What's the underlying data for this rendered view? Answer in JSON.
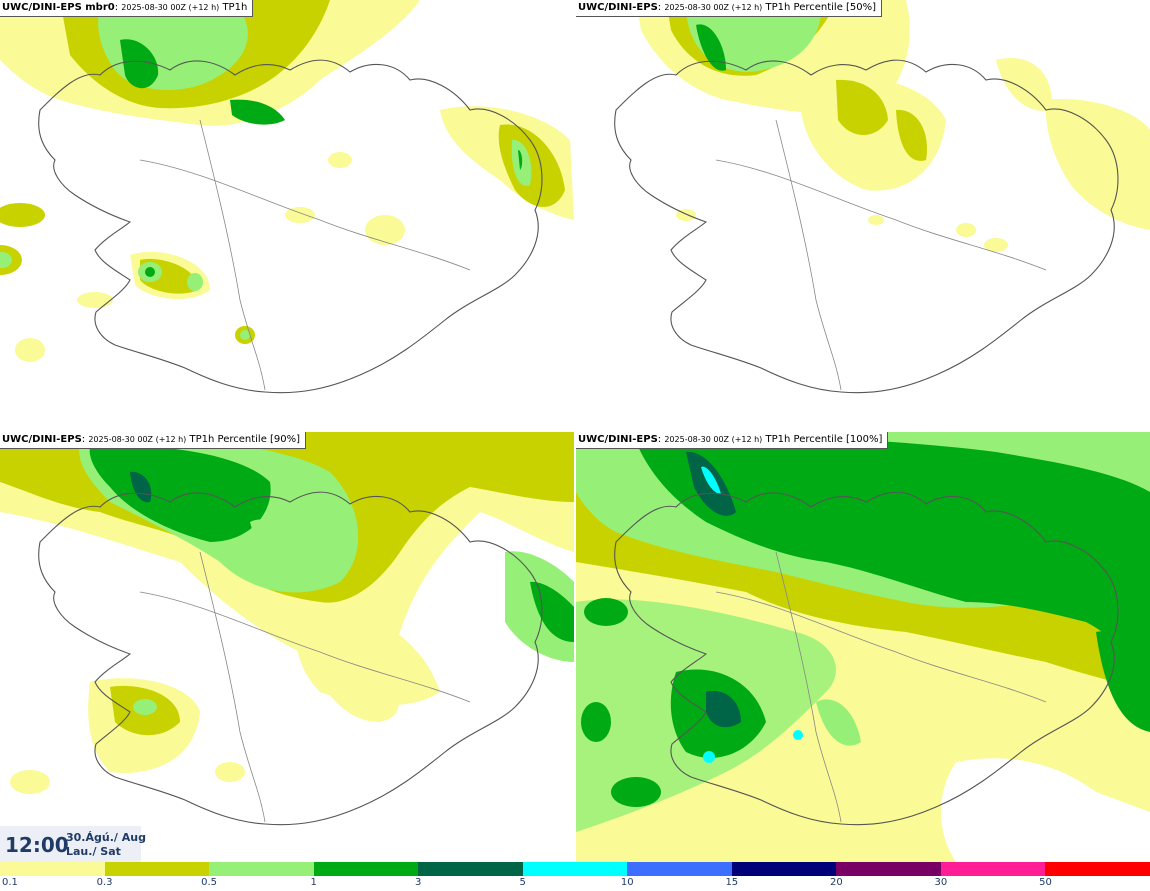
{
  "panels": [
    {
      "model": "UWC/DINI-EPS mbr0",
      "run": "2025-08-30 00Z (+12 h)",
      "variable": "TP1h"
    },
    {
      "model": "UWC/DINI-EPS",
      "run": "2025-08-30 00Z (+12 h)",
      "variable": "TP1h Percentile [50%]"
    },
    {
      "model": "UWC/DINI-EPS",
      "run": "2025-08-30 00Z (+12 h)",
      "variable": "TP1h Percentile [90%]"
    },
    {
      "model": "UWC/DINI-EPS",
      "run": "2025-08-30 00Z (+12 h)",
      "variable": "TP1h Percentile [100%]"
    }
  ],
  "valid_time": {
    "time": "12:00",
    "date_line1": "30.Ágú./ Aug",
    "date_line2": "Lau./ Sat"
  },
  "legend": {
    "labels": [
      "0.1",
      "0.3",
      "0.5",
      "1",
      "3",
      "5",
      "10",
      "15",
      "20",
      "30",
      "50"
    ],
    "colors": [
      "#fafa96",
      "#c8d200",
      "#96f078",
      "#00aa14",
      "#006446",
      "#00ffff",
      "#3c6eff",
      "#000078",
      "#780064",
      "#ff1e96",
      "#ff0000"
    ]
  },
  "map": {
    "region": "Iceland",
    "background": "#ffffff",
    "coastline_color": "#555555"
  }
}
